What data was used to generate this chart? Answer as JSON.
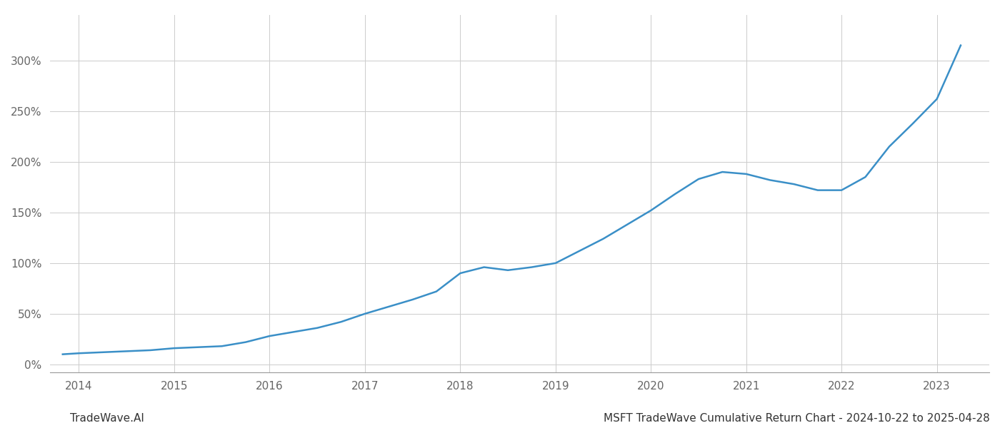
{
  "title": "MSFT TradeWave Cumulative Return Chart - 2024-10-22 to 2025-04-28",
  "watermark": "TradeWave.AI",
  "x_years": [
    2014,
    2015,
    2016,
    2017,
    2018,
    2019,
    2020,
    2021,
    2022,
    2023
  ],
  "x_values": [
    2013.83,
    2014.0,
    2014.25,
    2014.5,
    2014.75,
    2015.0,
    2015.25,
    2015.5,
    2015.75,
    2016.0,
    2016.25,
    2016.5,
    2016.75,
    2017.0,
    2017.25,
    2017.5,
    2017.75,
    2018.0,
    2018.25,
    2018.5,
    2018.75,
    2019.0,
    2019.25,
    2019.5,
    2019.75,
    2020.0,
    2020.25,
    2020.5,
    2020.75,
    2021.0,
    2021.25,
    2021.5,
    2021.75,
    2022.0,
    2022.25,
    2022.5,
    2022.75,
    2023.0,
    2023.25
  ],
  "y_values": [
    10,
    11,
    12,
    13,
    14,
    16,
    17,
    18,
    22,
    28,
    32,
    36,
    42,
    50,
    57,
    64,
    72,
    90,
    96,
    93,
    96,
    100,
    112,
    124,
    138,
    152,
    168,
    183,
    190,
    188,
    182,
    178,
    172,
    172,
    185,
    215,
    238,
    262,
    315
  ],
  "line_color": "#3a8fc7",
  "line_width": 1.8,
  "ylim": [
    -8,
    345
  ],
  "yticks": [
    0,
    50,
    100,
    150,
    200,
    250,
    300
  ],
  "ytick_labels": [
    "0%",
    "50%",
    "100%",
    "150%",
    "200%",
    "250%",
    "300%"
  ],
  "xlim": [
    2013.7,
    2023.55
  ],
  "background_color": "#ffffff",
  "grid_color": "#cccccc",
  "grid_linewidth": 0.7,
  "title_fontsize": 11,
  "watermark_fontsize": 11,
  "tick_fontsize": 11,
  "axis_label_color": "#666666",
  "spine_color": "#999999"
}
